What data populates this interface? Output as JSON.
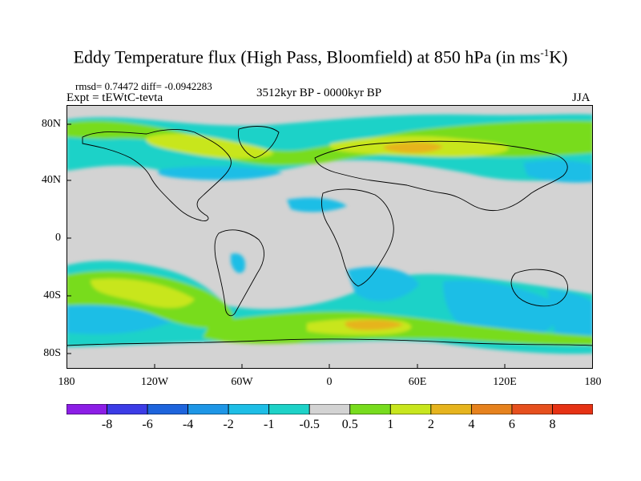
{
  "title": {
    "main": "Eddy Temperature flux (High Pass, Bloomfield) at 850 hPa (in ms",
    "sup": "-1",
    "tail": "K)"
  },
  "stats": "rmsd= 0.74472 diff= -0.0942283",
  "experiment": "Expt = tEWtC-tevta",
  "period": "3512kyr BP - 0000kyr BP",
  "season": "JJA",
  "map": {
    "background": "#d3d3d3",
    "lat_labels": [
      "80N",
      "40N",
      "0",
      "40S",
      "80S"
    ],
    "lon_labels": [
      "180",
      "120W",
      "60W",
      "0",
      "60E",
      "120E",
      "180"
    ]
  },
  "colorbar": {
    "labels": [
      "-8",
      "-6",
      "-4",
      "-2",
      "-1",
      "-0.5",
      "0.5",
      "1",
      "2",
      "4",
      "6",
      "8"
    ],
    "colors": [
      "#8c1ee6",
      "#3c3ce6",
      "#1e64dc",
      "#1e96e6",
      "#1ebee6",
      "#1ed2c8",
      "#d3d3d3",
      "#78dc1e",
      "#c8e61e",
      "#e6b41e",
      "#e6821e",
      "#e6501e",
      "#e63214"
    ]
  }
}
